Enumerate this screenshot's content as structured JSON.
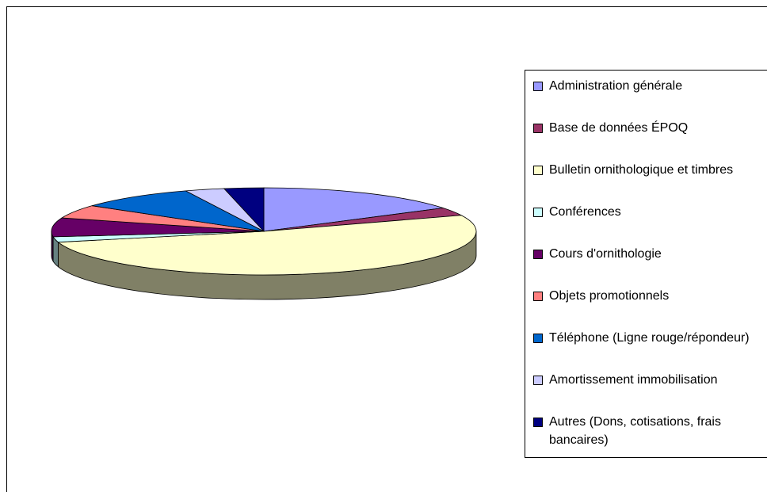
{
  "chart_data": {
    "type": "pie",
    "categories": [
      "Administration générale",
      "Base de données ÉPOQ",
      "Bulletin ornithologique et timbres",
      "Conférences",
      "Cours d'ornithologie",
      "Objets promotionnels",
      "Téléphone (Ligne rouge/répondeur)",
      "Amortissement immobilisation",
      "Autres (Dons, cotisations, frais bancaires)"
    ],
    "values": [
      16,
      3,
      52,
      2,
      7,
      5,
      9,
      3,
      3
    ],
    "colors": [
      "#9999ff",
      "#993366",
      "#ffffcc",
      "#ccffff",
      "#660066",
      "#ff8080",
      "#0066cc",
      "#ccccff",
      "#000080"
    ]
  }
}
